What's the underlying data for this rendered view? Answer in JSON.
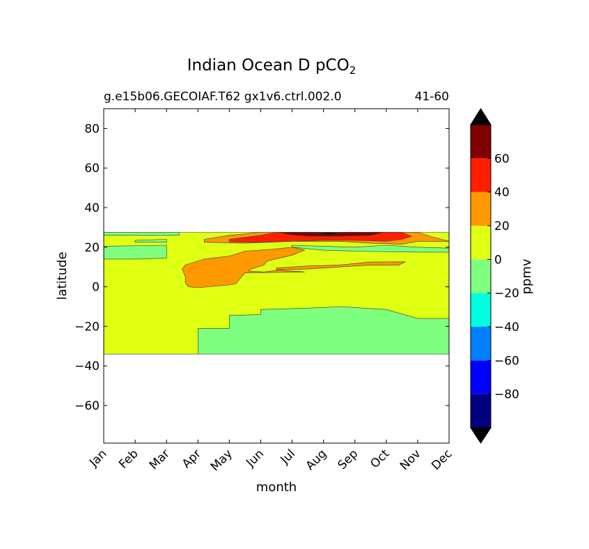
{
  "chart_data": {
    "type": "heatmap",
    "title_main": "Indian Ocean D pCO",
    "title_sub": "2",
    "subtitle_left": "g.e15b06.GECOIAF.T62 gx1v6.ctrl.002.0",
    "subtitle_right": "41-60",
    "xlabel": "month",
    "ylabel": "latitude",
    "x_ticks": [
      "Jan",
      "Feb",
      "Mar",
      "Apr",
      "May",
      "Jun",
      "Jul",
      "Aug",
      "Sep",
      "Oct",
      "Nov",
      "Dec"
    ],
    "xlim": [
      0,
      11
    ],
    "ylim": [
      -79,
      90
    ],
    "y_ticks": [
      80,
      60,
      40,
      20,
      0,
      -20,
      -40,
      -60
    ],
    "y_tick_labels": [
      "80",
      "60",
      "40",
      "20",
      "0",
      "−20",
      "−40",
      "−60"
    ],
    "data_lat_range": [
      -34,
      27.5
    ],
    "colorbar": {
      "label": "ppmv",
      "levels": [
        -100,
        -80,
        -60,
        -40,
        -20,
        0,
        20,
        40,
        60,
        80
      ],
      "tick_labels": [
        "−80",
        "−60",
        "−40",
        "−20",
        "0",
        "20",
        "40",
        "60"
      ],
      "tick_values": [
        -80,
        -60,
        -40,
        -20,
        0,
        20,
        40,
        60
      ],
      "colors": [
        "#00007f",
        "#0000ff",
        "#007fff",
        "#00ffdf",
        "#7fff7f",
        "#dfff13",
        "#ff9900",
        "#ff1f00",
        "#7f0000"
      ],
      "extend_colors": [
        "#000000",
        "#000000"
      ]
    },
    "regions": [
      {
        "level": "0 to 20",
        "color": "#dfff13",
        "shape": "background",
        "points": [
          [
            0,
            27.5
          ],
          [
            11,
            27.5
          ],
          [
            11,
            -34
          ],
          [
            0,
            -34
          ]
        ]
      },
      {
        "level": "-20 to 0",
        "color": "#7fff7f",
        "shape": "south",
        "points": [
          [
            3,
            -34
          ],
          [
            3,
            -21
          ],
          [
            4,
            -21
          ],
          [
            4,
            -14.5
          ],
          [
            5,
            -14
          ],
          [
            5,
            -11.5
          ],
          [
            6,
            -11
          ],
          [
            7,
            -10.5
          ],
          [
            7.5,
            -10
          ],
          [
            8,
            -10.5
          ],
          [
            9,
            -11.5
          ],
          [
            10,
            -16
          ],
          [
            11,
            -16
          ],
          [
            11,
            -34
          ]
        ]
      },
      {
        "level": "-20 to 0",
        "color": "#7fff7f",
        "shape": "west_band",
        "points": [
          [
            0,
            20.5
          ],
          [
            2,
            21
          ],
          [
            2,
            14.5
          ],
          [
            1,
            14
          ],
          [
            0,
            14
          ]
        ]
      },
      {
        "level": "-20 to 0",
        "color": "#7fff7f",
        "shape": "nw_strip",
        "points": [
          [
            0,
            27.5
          ],
          [
            2.4,
            27.5
          ],
          [
            2.4,
            26
          ],
          [
            0,
            26
          ]
        ]
      },
      {
        "level": "-20 to 0",
        "color": "#7fff7f",
        "shape": "nw_blob",
        "points": [
          [
            1,
            23.5
          ],
          [
            2,
            24
          ],
          [
            2,
            22.5
          ],
          [
            1,
            22.5
          ]
        ]
      },
      {
        "level": "-20 to 0",
        "color": "#7fff7f",
        "shape": "east_band",
        "points": [
          [
            6,
            21
          ],
          [
            7,
            20.5
          ],
          [
            8,
            20
          ],
          [
            9,
            21
          ],
          [
            10,
            20
          ],
          [
            11,
            19.5
          ],
          [
            11,
            17.5
          ],
          [
            10,
            17.5
          ],
          [
            8,
            18
          ],
          [
            7,
            18.5
          ],
          [
            6,
            20
          ]
        ]
      },
      {
        "level": "20 to 40",
        "color": "#ff9900",
        "shape": "central_blob",
        "points": [
          [
            2.6,
            11
          ],
          [
            3.2,
            14
          ],
          [
            4,
            15.5
          ],
          [
            4.5,
            18
          ],
          [
            5.4,
            19
          ],
          [
            6,
            20
          ],
          [
            6.4,
            18.5
          ],
          [
            6,
            16
          ],
          [
            5.2,
            13
          ],
          [
            5.1,
            11
          ],
          [
            4.7,
            9
          ],
          [
            4.6,
            8
          ],
          [
            5.1,
            7.5
          ],
          [
            5.6,
            8.5
          ],
          [
            6,
            8
          ],
          [
            6.4,
            7.5
          ],
          [
            4.5,
            7
          ],
          [
            4.2,
            1.5
          ],
          [
            4,
            1
          ],
          [
            3,
            -0.5
          ],
          [
            2.7,
            0
          ],
          [
            2.6,
            2
          ],
          [
            2.6,
            5
          ],
          [
            2.5,
            9
          ]
        ]
      },
      {
        "level": "20 to 40",
        "color": "#ff9900",
        "shape": "tongue",
        "points": [
          [
            5.5,
            9.5
          ],
          [
            6.5,
            10.5
          ],
          [
            7.5,
            11
          ],
          [
            8.5,
            12.5
          ],
          [
            9.6,
            12.6
          ],
          [
            9.4,
            11
          ],
          [
            8.5,
            11
          ],
          [
            7.5,
            10
          ],
          [
            6.5,
            9
          ],
          [
            5.5,
            8.6
          ]
        ]
      },
      {
        "level": "20 to 40",
        "color": "#ff9900",
        "shape": "north_band",
        "points": [
          [
            3.2,
            24
          ],
          [
            4,
            26
          ],
          [
            5,
            27.5
          ],
          [
            10,
            27.5
          ],
          [
            10.5,
            25
          ],
          [
            11,
            23
          ],
          [
            10,
            23
          ],
          [
            9.5,
            21.5
          ],
          [
            8.5,
            22
          ],
          [
            7.5,
            23
          ],
          [
            6,
            23
          ],
          [
            4.5,
            22
          ],
          [
            3.2,
            22.5
          ]
        ]
      },
      {
        "level": "40 to 60",
        "color": "#ff1f00",
        "shape": "north_core",
        "points": [
          [
            4,
            24
          ],
          [
            5,
            26
          ],
          [
            5.5,
            27.5
          ],
          [
            9.5,
            27.5
          ],
          [
            9.8,
            25.5
          ],
          [
            9.5,
            24
          ],
          [
            9,
            23
          ],
          [
            8,
            23.5
          ],
          [
            7,
            23.5
          ],
          [
            5,
            22.5
          ],
          [
            4,
            22.8
          ]
        ]
      },
      {
        "level": "60 to 80",
        "color": "#7f0000",
        "shape": "peak",
        "points": [
          [
            5.6,
            27.5
          ],
          [
            8.9,
            27.5
          ],
          [
            8.5,
            26
          ],
          [
            7.5,
            25.6
          ],
          [
            6.5,
            25.6
          ],
          [
            5.9,
            26.5
          ]
        ]
      },
      {
        "level": "above 80",
        "color": "#000000",
        "shape": "peak_core",
        "points": [
          [
            6.7,
            27
          ],
          [
            7.2,
            27.3
          ],
          [
            7.6,
            27
          ],
          [
            7.2,
            26.5
          ]
        ]
      }
    ]
  }
}
